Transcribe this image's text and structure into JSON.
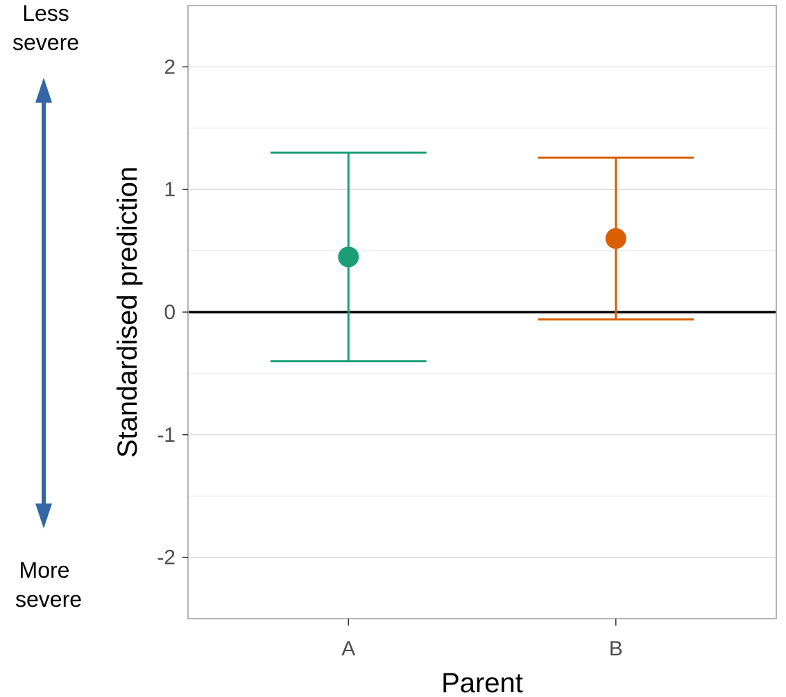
{
  "chart_data": {
    "type": "scatter",
    "title": "",
    "xlabel": "Parent",
    "ylabel": "Standardised prediction",
    "categories": [
      "A",
      "B"
    ],
    "ylim": [
      -2.5,
      2.5
    ],
    "yticks": [
      -2,
      -1,
      0,
      1,
      2
    ],
    "ytick_labels": [
      "-2",
      "-1",
      "0",
      "1",
      "2"
    ],
    "grid": true,
    "reference_line": 0,
    "points": [
      {
        "category": "A",
        "value": 0.45,
        "lower": -0.4,
        "upper": 1.3,
        "color": "#1b9e77"
      },
      {
        "category": "B",
        "value": 0.6,
        "lower": -0.06,
        "upper": 1.26,
        "color": "#d95f02"
      }
    ],
    "annotations": {
      "top": [
        "Less",
        "severe"
      ],
      "bottom": [
        "More",
        "severe"
      ],
      "arrow_color": "#3465a4"
    }
  }
}
